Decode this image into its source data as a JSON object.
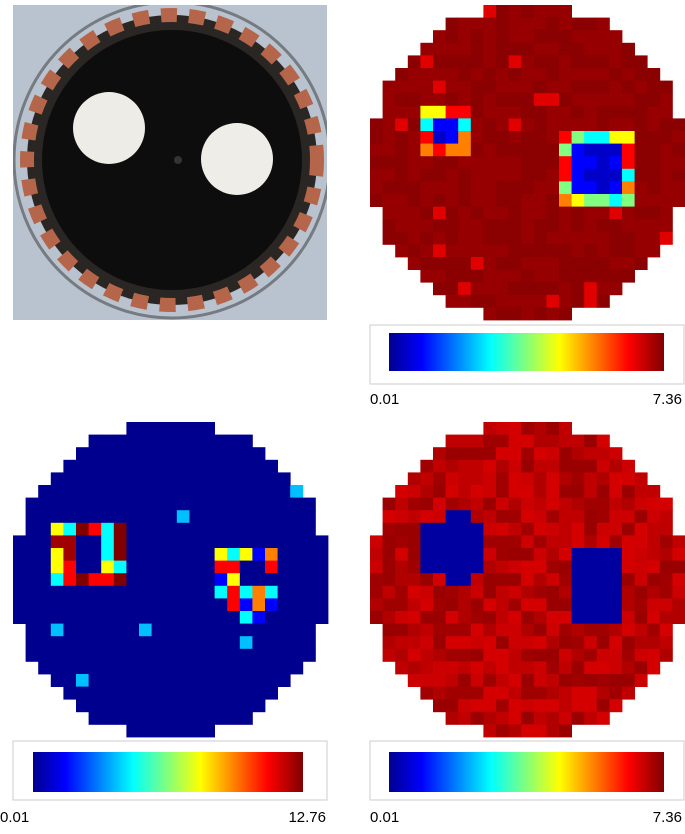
{
  "panels": [
    {
      "colorbar": {
        "min_label": "0.01",
        "max_label": "7.36"
      }
    },
    {
      "colorbar": {
        "min_label": "0.01",
        "max_label": "12.76"
      }
    },
    {
      "colorbar": {
        "min_label": "0.01",
        "max_label": "7.36"
      }
    }
  ]
}
